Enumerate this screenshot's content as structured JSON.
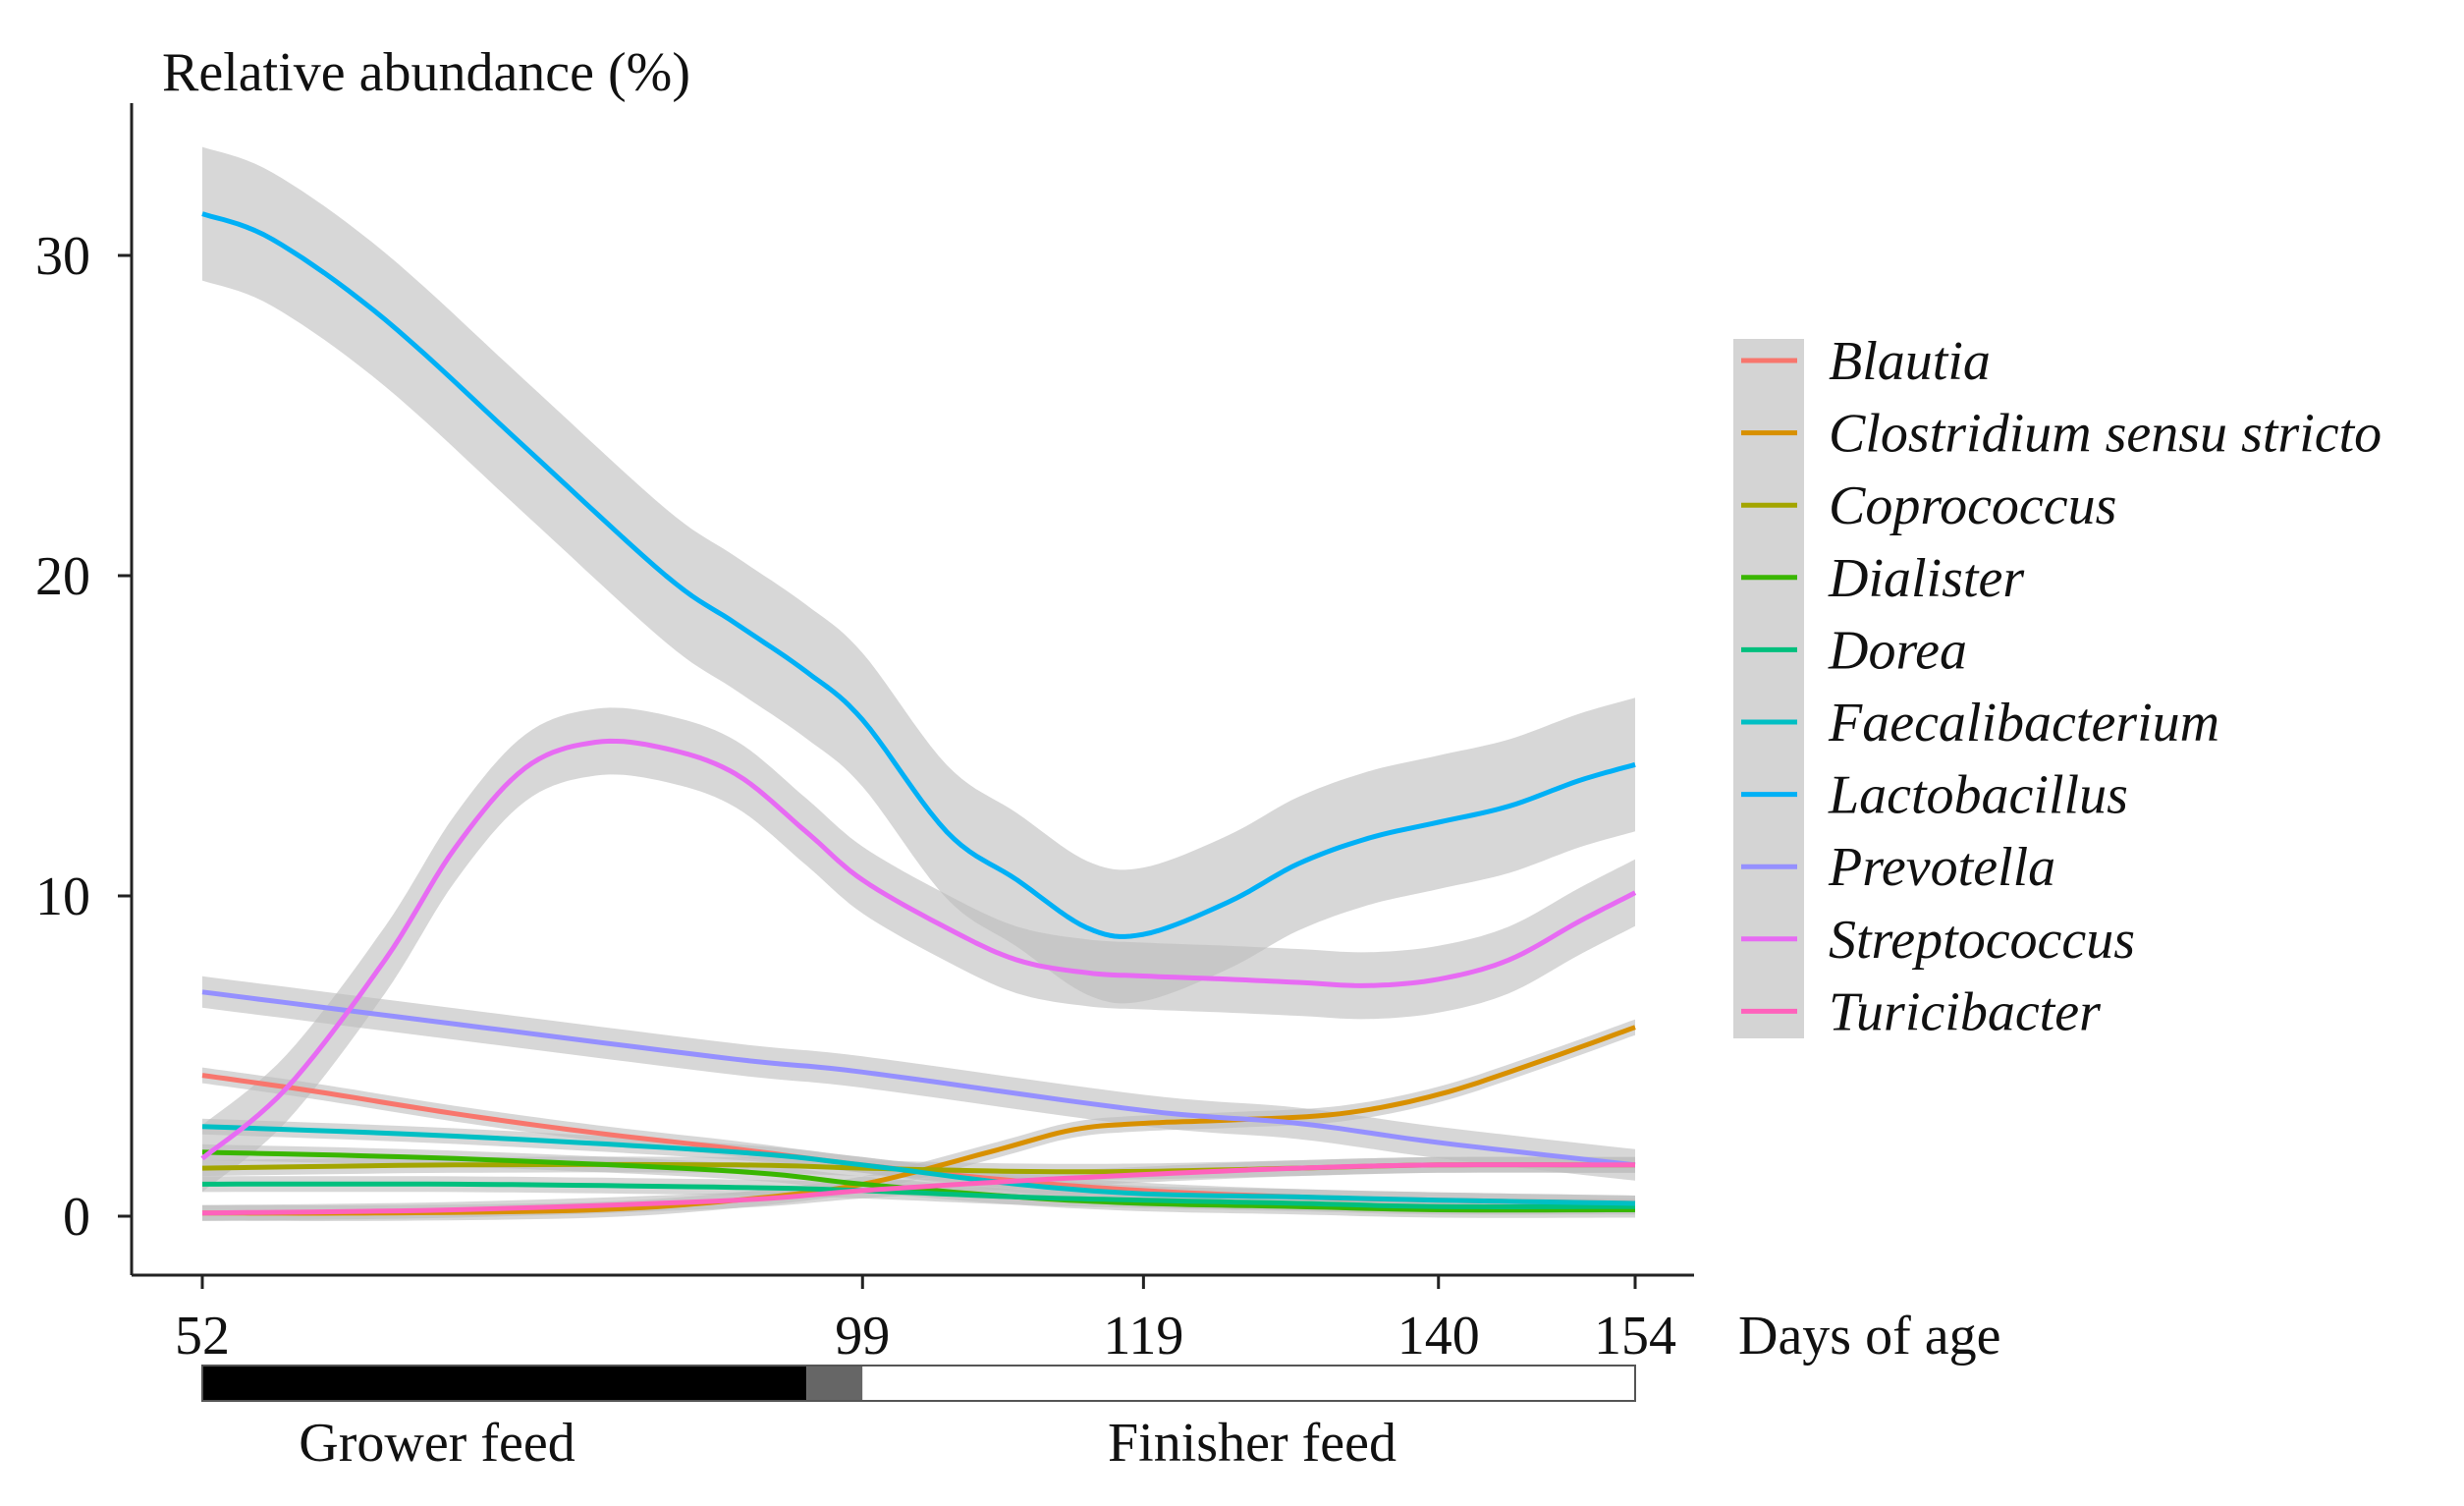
{
  "chart_data": {
    "type": "line",
    "ylabel": "Relative abundance (%)",
    "xlabel": "Days of age",
    "x_ticks": [
      52,
      99,
      119,
      140,
      154
    ],
    "y_ticks": [
      0,
      10,
      20,
      30
    ],
    "xlim": [
      47,
      157
    ],
    "ylim": [
      -2,
      34
    ],
    "grid": false,
    "legend_position": "right",
    "confidence_band": true,
    "series": [
      {
        "name": "Blautia",
        "color": "#F8766D",
        "x": [
          52,
          60,
          70,
          80,
          90,
          99,
          110,
          119,
          130,
          140,
          154
        ],
        "y": [
          4.4,
          3.9,
          3.2,
          2.6,
          2.1,
          1.6,
          1.1,
          0.8,
          0.6,
          0.5,
          0.4
        ]
      },
      {
        "name": "Clostridium sensu stricto",
        "color": "#D89000",
        "x": [
          52,
          65,
          80,
          90,
          99,
          108,
          114,
          119,
          125,
          133,
          140,
          147,
          154
        ],
        "y": [
          0.1,
          0.1,
          0.2,
          0.5,
          1.0,
          2.0,
          2.7,
          2.9,
          3.0,
          3.2,
          3.8,
          4.8,
          5.9
        ]
      },
      {
        "name": "Coprococcus",
        "color": "#A3A500",
        "x": [
          52,
          70,
          90,
          99,
          110,
          119,
          130,
          140,
          154
        ],
        "y": [
          1.5,
          1.6,
          1.6,
          1.5,
          1.4,
          1.4,
          1.5,
          1.6,
          1.6
        ]
      },
      {
        "name": "Dialister",
        "color": "#39B600",
        "x": [
          52,
          70,
          90,
          99,
          110,
          119,
          130,
          140,
          154
        ],
        "y": [
          2.0,
          1.8,
          1.4,
          1.0,
          0.6,
          0.4,
          0.3,
          0.2,
          0.2
        ]
      },
      {
        "name": "Dorea",
        "color": "#00BF7D",
        "x": [
          52,
          70,
          90,
          99,
          110,
          119,
          130,
          140,
          154
        ],
        "y": [
          1.0,
          1.0,
          0.9,
          0.8,
          0.6,
          0.5,
          0.4,
          0.3,
          0.3
        ]
      },
      {
        "name": "Faecalibacterium",
        "color": "#00BFC4",
        "x": [
          52,
          70,
          90,
          99,
          110,
          119,
          130,
          140,
          154
        ],
        "y": [
          2.8,
          2.5,
          2.0,
          1.6,
          1.0,
          0.7,
          0.6,
          0.5,
          0.4
        ]
      },
      {
        "name": "Lactobacillus",
        "color": "#00B0F6",
        "x": [
          52,
          57,
          65,
          75,
          85,
          90,
          95,
          99,
          105,
          110,
          115,
          119,
          125,
          130,
          135,
          140,
          145,
          150,
          154
        ],
        "y": [
          31.3,
          30.5,
          28.0,
          24.0,
          20.0,
          18.5,
          17.0,
          15.5,
          12.0,
          10.5,
          9.0,
          8.8,
          9.8,
          11.0,
          11.8,
          12.3,
          12.8,
          13.6,
          14.1
        ]
      },
      {
        "name": "Prevotella",
        "color": "#9590FF",
        "x": [
          52,
          70,
          90,
          99,
          119,
          130,
          140,
          154
        ],
        "y": [
          7.0,
          6.0,
          4.9,
          4.5,
          3.3,
          2.9,
          2.3,
          1.6
        ]
      },
      {
        "name": "Streptococcus",
        "color": "#E76BF3",
        "x": [
          52,
          58,
          65,
          70,
          75,
          80,
          85,
          90,
          95,
          99,
          105,
          110,
          115,
          119,
          125,
          130,
          135,
          140,
          145,
          150,
          154
        ],
        "y": [
          1.8,
          4.0,
          8.0,
          11.5,
          14.0,
          14.8,
          14.6,
          13.8,
          12.0,
          10.5,
          9.0,
          8.0,
          7.6,
          7.5,
          7.4,
          7.3,
          7.2,
          7.4,
          8.0,
          9.2,
          10.1
        ]
      },
      {
        "name": "Turicibacter",
        "color": "#FF62BC",
        "x": [
          52,
          70,
          90,
          99,
          110,
          119,
          130,
          140,
          154
        ],
        "y": [
          0.1,
          0.2,
          0.5,
          0.8,
          1.1,
          1.3,
          1.5,
          1.6,
          1.6
        ]
      }
    ],
    "feed_bar": {
      "x_start": 52,
      "x_end": 154,
      "segments": [
        {
          "from": 52,
          "to": 95,
          "fill": "#000000"
        },
        {
          "from": 95,
          "to": 99,
          "fill": "#666666"
        },
        {
          "from": 99,
          "to": 154,
          "fill": "#ffffff"
        }
      ],
      "labels": [
        "Grower feed",
        "Finisher feed"
      ]
    }
  }
}
